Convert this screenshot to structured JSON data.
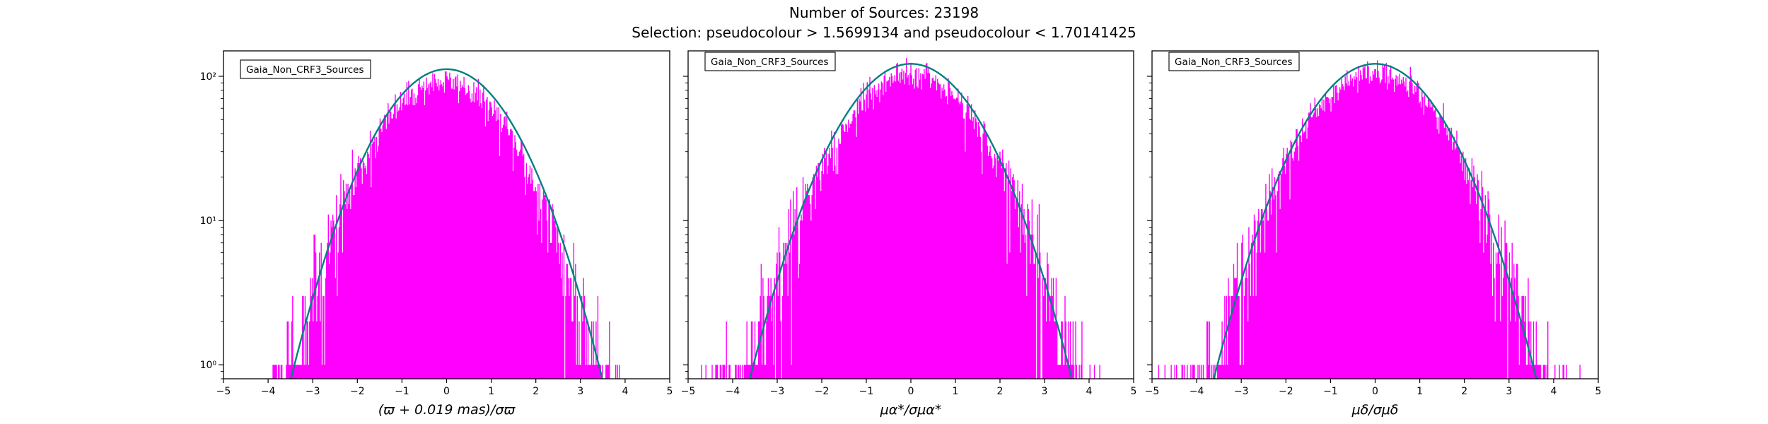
{
  "figure": {
    "title_line1": "Number of Sources: 23198",
    "title_line2": "Selection: pseudocolour > 1.5699134 and pseudocolour < 1.70141425",
    "hist_color": "#ff00ff",
    "fit_color": "#008080"
  },
  "chart_data": [
    {
      "type": "histogram",
      "legend": "Gaia_Non_CRF3_Sources",
      "legend_placement": "top-left",
      "xlabel": "(ϖ + 0.019 mas)/σϖ",
      "xlim": [
        -5,
        5
      ],
      "x_ticks": [
        "−5",
        "−4",
        "−3",
        "−2",
        "−1",
        "0",
        "1",
        "2",
        "3",
        "4",
        "5"
      ],
      "y_scale": "log",
      "ylim": [
        0.8,
        150
      ],
      "y_ticks": [
        "10⁰",
        "10¹",
        "10²"
      ],
      "bin_width": 0.02,
      "fit": {
        "type": "gaussian",
        "mean": 0.0,
        "sigma": 1.11,
        "peak": 112
      },
      "hist": {
        "mean": -0.08,
        "sigma": 1.13,
        "peak": 92,
        "x_min": -3.9,
        "x_max": 3.9,
        "seed": 11
      }
    },
    {
      "type": "histogram",
      "legend": "Gaia_Non_CRF3_Sources",
      "legend_placement": "top-left",
      "xlabel": "μα*/σμα*",
      "xlim": [
        -5,
        5
      ],
      "x_ticks": [
        "−5",
        "−4",
        "−3",
        "−2",
        "−1",
        "0",
        "1",
        "2",
        "3",
        "4",
        "5"
      ],
      "y_scale": "log",
      "ylim": [
        0.8,
        150
      ],
      "y_ticks": [
        "10⁰",
        "10¹",
        "10²"
      ],
      "bin_width": 0.02,
      "fit": {
        "type": "gaussian",
        "mean": 0.0,
        "sigma": 1.14,
        "peak": 122
      },
      "hist": {
        "mean": 0.0,
        "sigma": 1.16,
        "peak": 105,
        "x_min": -4.95,
        "x_max": 4.3,
        "seed": 23
      }
    },
    {
      "type": "histogram",
      "legend": "Gaia_Non_CRF3_Sources",
      "legend_placement": "top-left",
      "xlabel": "μδ/σμδ",
      "xlim": [
        -5,
        5
      ],
      "x_ticks": [
        "−5",
        "−4",
        "−3",
        "−2",
        "−1",
        "0",
        "1",
        "2",
        "3",
        "4",
        "5"
      ],
      "y_scale": "log",
      "ylim": [
        0.8,
        150
      ],
      "y_ticks": [
        "10⁰",
        "10¹",
        "10²"
      ],
      "bin_width": 0.02,
      "fit": {
        "type": "gaussian",
        "mean": 0.0,
        "sigma": 1.14,
        "peak": 122
      },
      "hist": {
        "mean": 0.0,
        "sigma": 1.17,
        "peak": 106,
        "x_min": -4.9,
        "x_max": 4.6,
        "seed": 37
      }
    }
  ]
}
